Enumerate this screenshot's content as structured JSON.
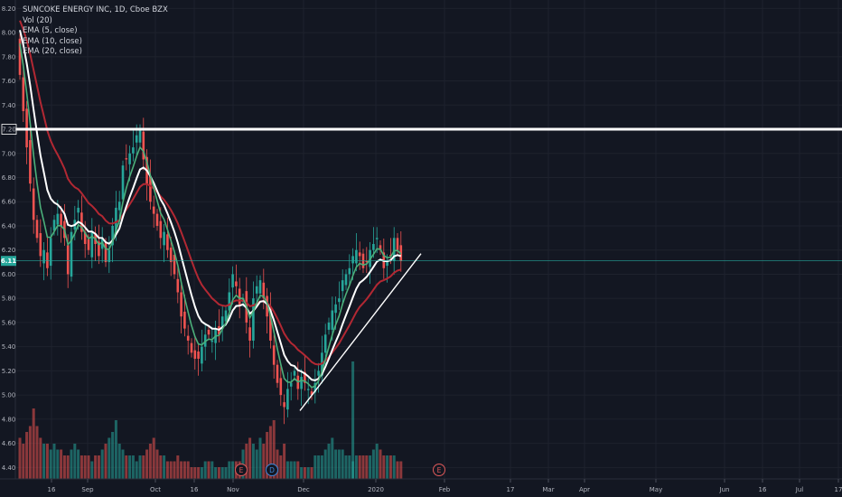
{
  "legend": {
    "symbol_line": "SUNCOKE ENERGY INC, 1D, Cboe BZX",
    "vol": "Vol (20)",
    "ema5": "EMA (5, close)",
    "ema10": "EMA (10, close)",
    "ema20": "EMA (20, close)"
  },
  "price_label": "6.11",
  "level_label": "7.20",
  "markers": [
    {
      "text": "E",
      "color": "#e05a5a"
    },
    {
      "text": "D",
      "color": "#3c86d8"
    },
    {
      "text": "E",
      "color": "#e05a5a"
    }
  ],
  "chart_data": {
    "type": "candlestick",
    "title": "SUNCOKE ENERGY INC, 1D, Cboe BZX",
    "ylim": [
      4.35,
      8.3
    ],
    "y_ticks": [
      "8.20",
      "8.00",
      "7.80",
      "7.60",
      "7.40",
      "7.20",
      "7.00",
      "6.80",
      "6.60",
      "6.40",
      "6.20",
      "6.00",
      "5.80",
      "5.60",
      "5.40",
      "5.20",
      "5.00",
      "4.80",
      "4.60",
      "4.40"
    ],
    "x_ticks": [
      "16",
      "Sep",
      "Oct",
      "16",
      "Nov",
      "Dec",
      "2020",
      "Feb",
      "17",
      "Mar",
      "Apr",
      "May",
      "Jun",
      "16",
      "Jul",
      "17"
    ],
    "horizontal_level": 7.2,
    "last_price": 6.11,
    "trendline": {
      "from": 4.87,
      "to": 6.17
    },
    "closes": [
      7.65,
      7.35,
      7.05,
      6.75,
      6.45,
      6.3,
      6.15,
      6.2,
      6.05,
      6.3,
      6.45,
      6.5,
      6.4,
      6.3,
      6.0,
      6.35,
      6.45,
      6.55,
      6.35,
      6.25,
      6.2,
      6.35,
      6.25,
      6.15,
      6.3,
      6.1,
      6.2,
      6.4,
      6.55,
      6.6,
      6.9,
      6.95,
      7.0,
      7.05,
      7.15,
      7.2,
      6.95,
      6.75,
      6.6,
      6.5,
      6.4,
      6.3,
      6.35,
      6.2,
      6.1,
      6.0,
      5.85,
      5.65,
      5.55,
      5.45,
      5.35,
      5.3,
      5.3,
      5.4,
      5.5,
      5.5,
      5.45,
      5.55,
      5.5,
      5.65,
      5.7,
      5.85,
      6.0,
      5.9,
      5.75,
      5.8,
      5.6,
      5.45,
      5.8,
      5.9,
      5.95,
      5.8,
      5.65,
      5.45,
      5.25,
      5.1,
      5.0,
      4.9,
      5.05,
      5.1,
      5.2,
      5.05,
      5.15,
      5.1,
      5.05,
      5.0,
      5.1,
      5.2,
      5.35,
      5.5,
      5.6,
      5.7,
      5.75,
      5.8,
      5.95,
      6.0,
      6.05,
      6.15,
      6.2,
      6.15,
      6.05,
      6.1,
      6.2,
      6.25,
      6.3,
      6.2,
      6.05,
      6.1,
      6.15,
      6.3,
      6.2,
      6.11
    ],
    "volume": [
      7,
      6,
      8,
      9,
      12,
      9,
      7,
      6,
      6,
      5,
      6,
      5,
      5,
      4,
      4,
      5,
      6,
      5,
      4,
      4,
      4,
      3,
      4,
      4,
      5,
      6,
      7,
      8,
      10,
      6,
      5,
      4,
      4,
      4,
      3,
      4,
      4,
      5,
      6,
      7,
      5,
      4,
      4,
      3,
      3,
      3,
      4,
      3,
      3,
      3,
      2,
      2,
      2,
      2,
      3,
      3,
      3,
      2,
      2,
      2,
      2,
      3,
      3,
      3,
      3,
      5,
      6,
      7,
      6,
      5,
      7,
      6,
      8,
      9,
      10,
      5,
      4,
      6,
      3,
      3,
      3,
      3,
      2,
      2,
      2,
      2,
      4,
      4,
      4,
      5,
      6,
      7,
      5,
      5,
      5,
      4,
      4,
      3,
      4,
      4,
      4,
      4,
      4,
      5,
      6,
      5,
      4,
      4,
      4,
      4,
      3,
      3
    ]
  }
}
